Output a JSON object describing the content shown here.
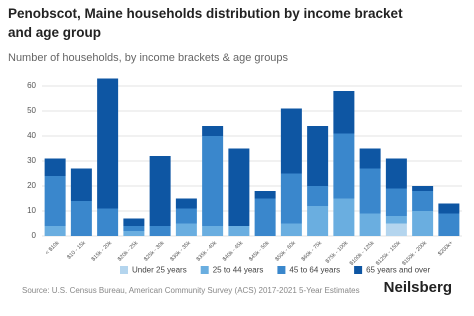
{
  "chart_data": {
    "type": "stacked_bar",
    "title": "Penobscot, Maine households distribution by income bracket and age group",
    "subtitle": "Number of households, by income brackets & age groups",
    "categories": [
      "< $10k",
      "$10 - 15k",
      "$15k - 20k",
      "$20k - 25k",
      "$25k - 30k",
      "$30k - 35k",
      "$35k - 40k",
      "$40k - 45k",
      "$45k - 50k",
      "$50k - 60k",
      "$60k - 75k",
      "$75k - 100k",
      "$100k - 125k",
      "$125k - 150k",
      "$150k - 200k",
      "$200k+"
    ],
    "series": [
      {
        "name": "Under 25 years",
        "color": "#b4d5ee",
        "values": [
          0,
          0,
          0,
          0,
          0,
          0,
          0,
          0,
          0,
          0,
          0,
          0,
          0,
          5,
          0,
          0
        ]
      },
      {
        "name": "25 to 44 years",
        "color": "#6aaee0",
        "values": [
          4,
          0,
          0,
          2,
          0,
          5,
          4,
          4,
          0,
          5,
          12,
          15,
          9,
          3,
          10,
          0
        ]
      },
      {
        "name": "45 to 64 years",
        "color": "#3a87cc",
        "values": [
          20,
          14,
          11,
          2,
          4,
          6,
          36,
          0,
          15,
          20,
          8,
          26,
          18,
          11,
          8,
          9
        ]
      },
      {
        "name": "65 years and over",
        "color": "#0e56a3",
        "values": [
          7,
          13,
          52,
          3,
          28,
          4,
          4,
          31,
          3,
          26,
          24,
          17,
          8,
          12,
          2,
          4
        ]
      }
    ],
    "ylim": [
      0,
      65
    ],
    "yticks": [
      0,
      10,
      20,
      30,
      40,
      50,
      60
    ],
    "grid": true,
    "source": "Source: U.S. Census Bureau, American Community Survey (ACS) 2017-2021 5-Year Estimates",
    "brand": "Neilsberg"
  }
}
